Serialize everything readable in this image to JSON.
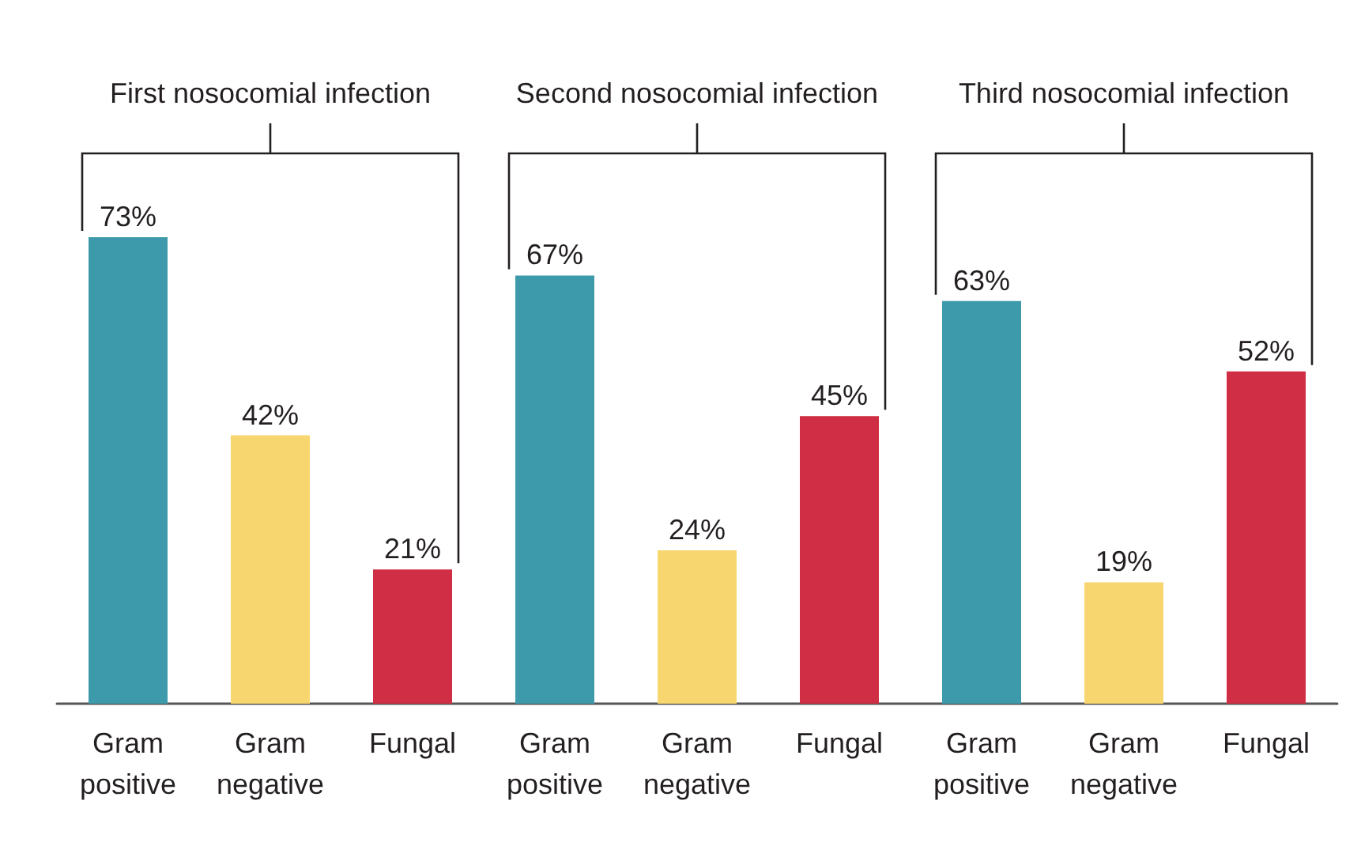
{
  "chart_data": {
    "type": "bar",
    "categories": [
      "Gram\npositive",
      "Gram\nnegative",
      "Fungal",
      "Gram\npositive",
      "Gram\nnegative",
      "Fungal",
      "Gram\npositive",
      "Gram\nnegative",
      "Fungal"
    ],
    "values": [
      73,
      42,
      21,
      67,
      24,
      45,
      63,
      19,
      52
    ],
    "colors": [
      "#3d9aab",
      "#f8d66f",
      "#cf2e45",
      "#3d9aab",
      "#f8d66f",
      "#cf2e45",
      "#3d9aab",
      "#f8d66f",
      "#cf2e45"
    ],
    "data_labels": true,
    "value_labels": [
      "73%",
      "42%",
      "21%",
      "67%",
      "24%",
      "45%",
      "63%",
      "19%",
      "52%"
    ],
    "annotations": [
      "First nosocomial infection",
      "Second nosocomial infection",
      "Third nosocomial infection"
    ]
  }
}
